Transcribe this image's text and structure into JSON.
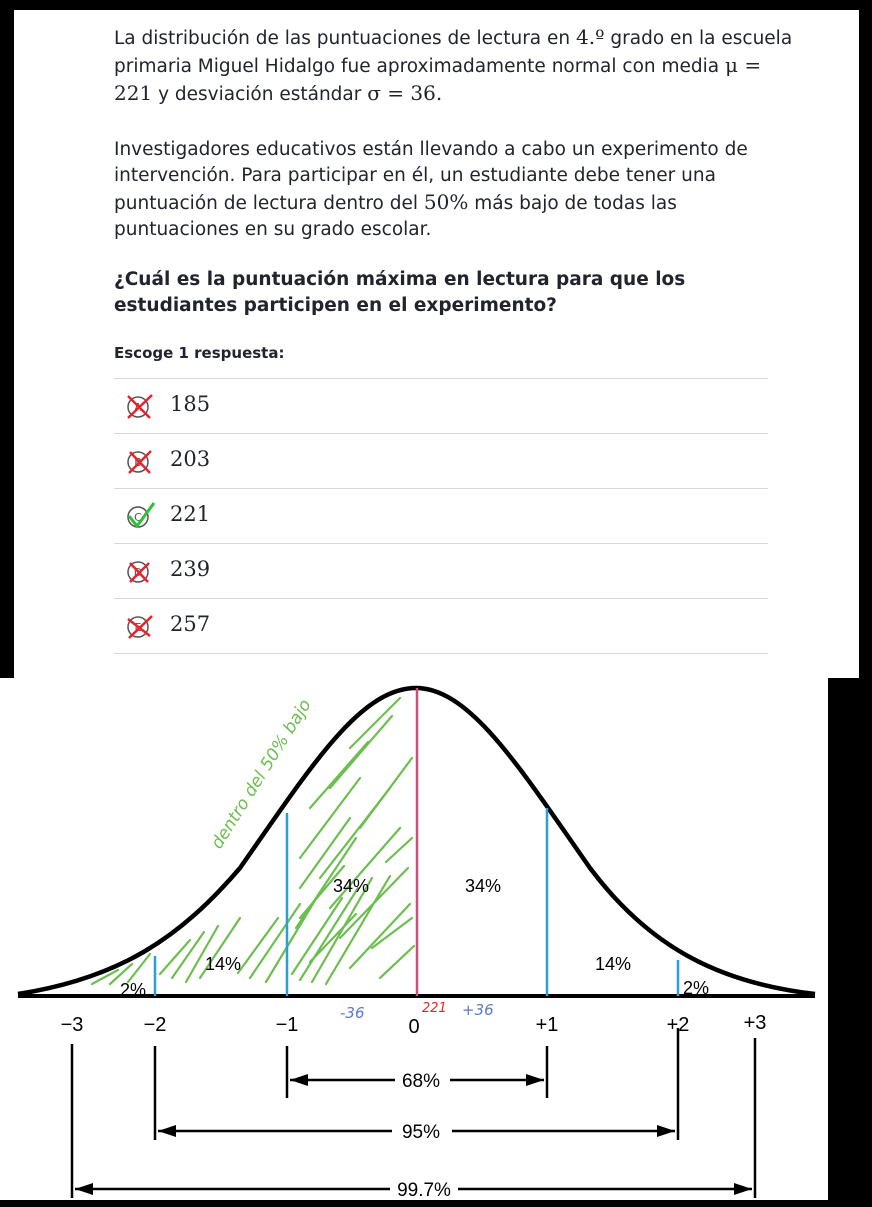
{
  "question": {
    "p1_a": "La distribución de las puntuaciones de lectura en",
    "p1_grade": "4.º",
    "p1_b": "grado en la escuela primaria Miguel Hidalgo fue aproximadamente normal con media",
    "p1_mu": "μ = 221",
    "p1_c": "y desviación estándar",
    "p1_sigma": "σ = 36.",
    "p2_a": "Investigadores educativos están llevando a cabo un experimento de intervención. Para participar en él, un estudiante debe tener una puntuación de lectura dentro del",
    "p2_pct": "50%",
    "p2_b": "más bajo de todas las puntuaciones en su grado escolar.",
    "prompt": "¿Cuál es la puntuación máxima en lectura para que los estudiantes participen en el experimento?",
    "choose_label": "Escoge 1 respuesta:"
  },
  "options": [
    {
      "letter": "A",
      "value": "185",
      "status": "crossed"
    },
    {
      "letter": "B",
      "value": "203",
      "status": "crossed"
    },
    {
      "letter": "C",
      "value": "221",
      "status": "checked"
    },
    {
      "letter": "D",
      "value": "239",
      "status": "crossed"
    },
    {
      "letter": "E",
      "value": "257",
      "status": "crossed"
    }
  ],
  "colors": {
    "cross": "#e8232b",
    "check": "#2fbf3a",
    "hatch": "#6cbf4f",
    "mean_line": "#c94f7c",
    "sd_line": "#2a9fd6"
  },
  "figure": {
    "axis_ticks": [
      "−3",
      "−2",
      "−1",
      "0",
      "+1",
      "+2",
      "+3"
    ],
    "region_labels": [
      "2%",
      "14%",
      "34%",
      "34%",
      "14%",
      "2%"
    ],
    "handwritten": {
      "annotation": "dentro del 50% bajo",
      "minus": "-36",
      "mean": "221",
      "plus": "+36"
    },
    "ranges": [
      "68%",
      "95%",
      "99.7%"
    ]
  }
}
